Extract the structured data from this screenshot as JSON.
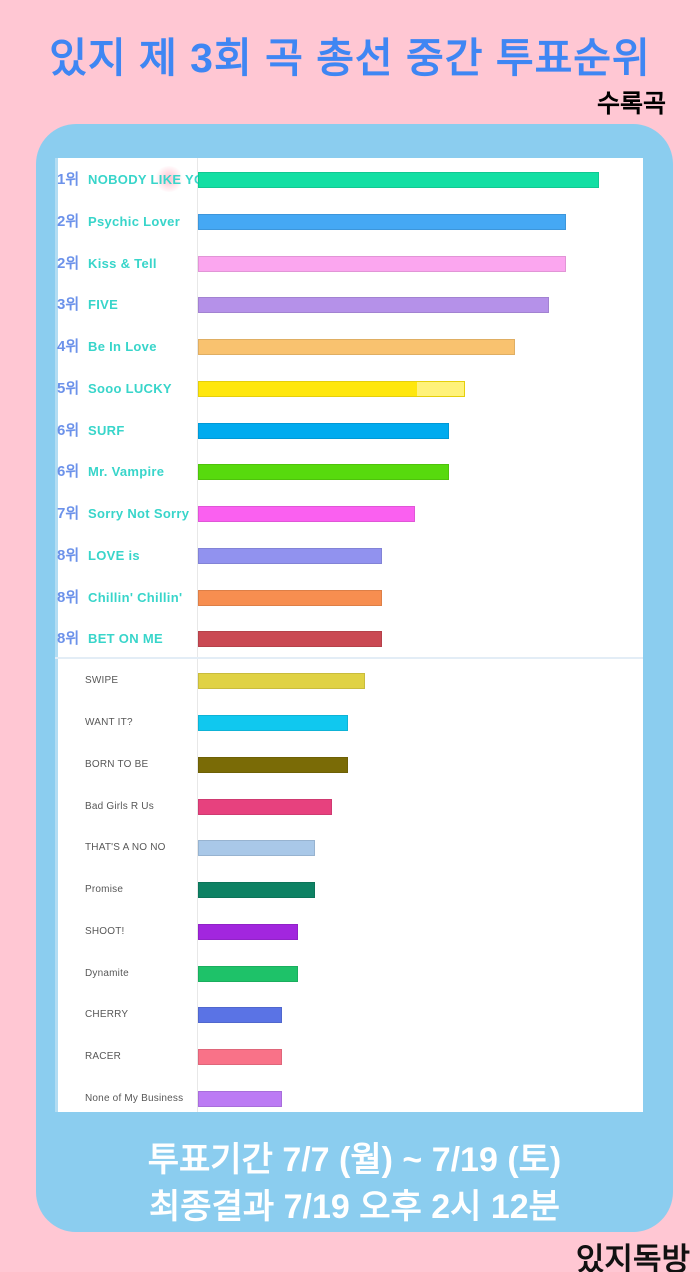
{
  "page": {
    "title": "있지 제 3회 곡 총선 중간 투표순위",
    "subtitle": "수록곡",
    "footer_line1": "투표기간 7/7 (월) ~ 7/19 (토)",
    "footer_line2": "최종결과 7/19 오후 2시 12분",
    "credit": "있지독방"
  },
  "colors": {
    "background_pink": "#FFC7D3",
    "panel_blue": "#8BCDEF",
    "title_blue": "#3F86F3",
    "rank_blue": "#6C92EA",
    "song_teal": "#38D5CA",
    "minor_label_gray": "#575757",
    "footer_text": "#FFFFFF",
    "credit_black": "#111111",
    "accent_line": "#B3DDF3",
    "axis_line": "#E8E8E8",
    "divider": "#E3EDF6"
  },
  "chart_data": {
    "type": "bar",
    "orientation": "horizontal",
    "title": "있지 제 3회 곡 총선 중간 투표순위 (수록곡)",
    "legend": "none",
    "grid": "off",
    "max_value": 24,
    "value_unit": "votes (estimated from bar length, 1 unit ≈ 16.7px)",
    "entries": [
      {
        "rank": "1위",
        "label": "NOBODY LIKE YOU",
        "value": 24,
        "color": "#12DFA3",
        "section": "ranked"
      },
      {
        "rank": "2위",
        "label": "Psychic Lover",
        "value": 22,
        "color": "#45A8F4",
        "section": "ranked"
      },
      {
        "rank": "2위",
        "label": "Kiss & Tell",
        "value": 22,
        "color": "#FBA6EF",
        "section": "ranked"
      },
      {
        "rank": "3위",
        "label": "FIVE",
        "value": 21,
        "color": "#B591E9",
        "section": "ranked"
      },
      {
        "rank": "4위",
        "label": "Be In Love",
        "value": 19,
        "color": "#F9C26F",
        "section": "ranked"
      },
      {
        "rank": "5위",
        "label": "Sooo LUCKY",
        "value": 16,
        "color": "#FFE70D",
        "tip": true,
        "section": "ranked"
      },
      {
        "rank": "6위",
        "label": "SURF",
        "value": 15,
        "color": "#01ABEF",
        "section": "ranked"
      },
      {
        "rank": "6위",
        "label": "Mr. Vampire",
        "value": 15,
        "color": "#57DA0D",
        "section": "ranked"
      },
      {
        "rank": "7위",
        "label": "Sorry Not Sorry",
        "value": 13,
        "color": "#FA60F0",
        "section": "ranked"
      },
      {
        "rank": "8위",
        "label": "LOVE is",
        "value": 11,
        "color": "#9192EF",
        "section": "ranked"
      },
      {
        "rank": "8위",
        "label": "Chillin' Chillin'",
        "value": 11,
        "color": "#F78E50",
        "section": "ranked"
      },
      {
        "rank": "8위",
        "label": "BET ON ME",
        "value": 11,
        "color": "#CA4953",
        "section": "ranked"
      },
      {
        "rank": "",
        "label": "SWIPE",
        "value": 10,
        "color": "#E0D244",
        "section": "unranked"
      },
      {
        "rank": "",
        "label": "WANT IT?",
        "value": 9,
        "color": "#10C8EF",
        "section": "unranked"
      },
      {
        "rank": "",
        "label": "BORN TO BE",
        "value": 9,
        "color": "#7A6B06",
        "section": "unranked"
      },
      {
        "rank": "",
        "label": "Bad Girls R Us",
        "value": 8,
        "color": "#E7417E",
        "section": "unranked"
      },
      {
        "rank": "",
        "label": "THAT'S A NO NO",
        "value": 7,
        "color": "#A9C8E8",
        "section": "unranked"
      },
      {
        "rank": "",
        "label": "Promise",
        "value": 7,
        "color": "#0E8264",
        "section": "unranked"
      },
      {
        "rank": "",
        "label": "SHOOT!",
        "value": 6,
        "color": "#A226DE",
        "section": "unranked"
      },
      {
        "rank": "",
        "label": "Dynamite",
        "value": 6,
        "color": "#1EC269",
        "section": "unranked"
      },
      {
        "rank": "",
        "label": "CHERRY",
        "value": 5,
        "color": "#5A73E5",
        "section": "unranked"
      },
      {
        "rank": "",
        "label": "RACER",
        "value": 5,
        "color": "#F97288",
        "section": "unranked"
      },
      {
        "rank": "",
        "label": "None of My Business",
        "value": 5,
        "color": "#BC7BF4",
        "section": "unranked"
      }
    ]
  }
}
